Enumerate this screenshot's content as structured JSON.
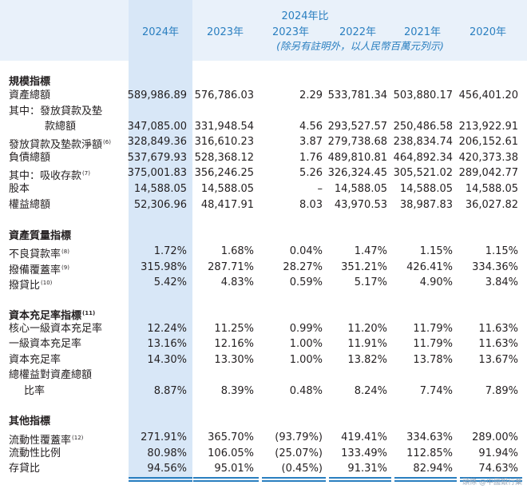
{
  "header": {
    "top_label": "2024年比",
    "subtitle": "(除另有註明外，以人民幣百萬元列示)",
    "years": [
      "2024年",
      "2023年",
      "2023年",
      "2022年",
      "2021年",
      "2020年"
    ]
  },
  "rows": [
    {
      "type": "section",
      "label": "規模指標"
    },
    {
      "label": "資產總額",
      "values": [
        "589,986.89",
        "576,786.03",
        "2.29",
        "533,781.34",
        "503,880.17",
        "456,401.20"
      ]
    },
    {
      "label": "其中：發放貸款及墊",
      "values": [
        "",
        "",
        "",
        "",
        "",
        ""
      ]
    },
    {
      "label": "款總額",
      "indent": 2,
      "values": [
        "347,085.00",
        "331,948.54",
        "4.56",
        "293,527.57",
        "250,486.58",
        "213,922.91"
      ]
    },
    {
      "label": "發放貸款及墊款淨額",
      "sup": "(6)",
      "values": [
        "328,849.36",
        "316,610.23",
        "3.87",
        "279,738.68",
        "238,834.74",
        "206,152.61"
      ]
    },
    {
      "label": "負債總額",
      "values": [
        "537,679.93",
        "528,368.12",
        "1.76",
        "489,810.81",
        "464,892.34",
        "420,373.38"
      ]
    },
    {
      "label": "其中：吸收存款",
      "sup": "(7)",
      "values": [
        "375,001.83",
        "356,246.25",
        "5.26",
        "326,324.45",
        "305,521.02",
        "289,042.77"
      ]
    },
    {
      "label": "股本",
      "values": [
        "14,588.05",
        "14,588.05",
        "–",
        "14,588.05",
        "14,588.05",
        "14,588.05"
      ]
    },
    {
      "label": "權益總額",
      "values": [
        "52,306.96",
        "48,417.91",
        "8.03",
        "43,970.53",
        "38,987.83",
        "36,027.82"
      ]
    },
    {
      "type": "section",
      "label": "資產質量指標"
    },
    {
      "label": "不良貸款率",
      "sup": "(8)",
      "values": [
        "1.72%",
        "1.68%",
        "0.04%",
        "1.47%",
        "1.15%",
        "1.15%"
      ]
    },
    {
      "label": "撥備覆蓋率",
      "sup": "(9)",
      "values": [
        "315.98%",
        "287.71%",
        "28.27%",
        "351.21%",
        "426.41%",
        "334.36%"
      ]
    },
    {
      "label": "撥貸比",
      "sup": "(10)",
      "values": [
        "5.42%",
        "4.83%",
        "0.59%",
        "5.17%",
        "4.90%",
        "3.84%"
      ]
    },
    {
      "type": "section",
      "label": "資本充足率指標",
      "sup": "(11)"
    },
    {
      "label": "核心一級資本充足率",
      "values": [
        "12.24%",
        "11.25%",
        "0.99%",
        "11.20%",
        "11.79%",
        "11.63%"
      ]
    },
    {
      "label": "一級資本充足率",
      "values": [
        "13.16%",
        "12.16%",
        "1.00%",
        "11.91%",
        "11.79%",
        "11.63%"
      ]
    },
    {
      "label": "資本充足率",
      "values": [
        "14.30%",
        "13.30%",
        "1.00%",
        "13.82%",
        "13.78%",
        "13.67%"
      ]
    },
    {
      "label": "總權益對資產總額",
      "values": [
        "",
        "",
        "",
        "",
        "",
        ""
      ]
    },
    {
      "label": "比率",
      "indent": 1,
      "values": [
        "8.87%",
        "8.39%",
        "0.48%",
        "8.24%",
        "7.74%",
        "7.89%"
      ]
    },
    {
      "type": "section",
      "label": "其他指標"
    },
    {
      "label": "流動性覆蓋率",
      "sup": "(12)",
      "values": [
        "271.91%",
        "365.70%",
        "(93.79%)",
        "419.41%",
        "334.63%",
        "289.00%"
      ]
    },
    {
      "label": "流動性比例",
      "values": [
        "80.98%",
        "106.05%",
        "(25.07%)",
        "133.49%",
        "112.85%",
        "91.94%"
      ]
    },
    {
      "label": "存貸比",
      "values": [
        "94.56%",
        "95.01%",
        "(0.45%)",
        "91.31%",
        "82.94%",
        "74.63%"
      ]
    }
  ],
  "watermark": "頭條 @中國銀行業"
}
